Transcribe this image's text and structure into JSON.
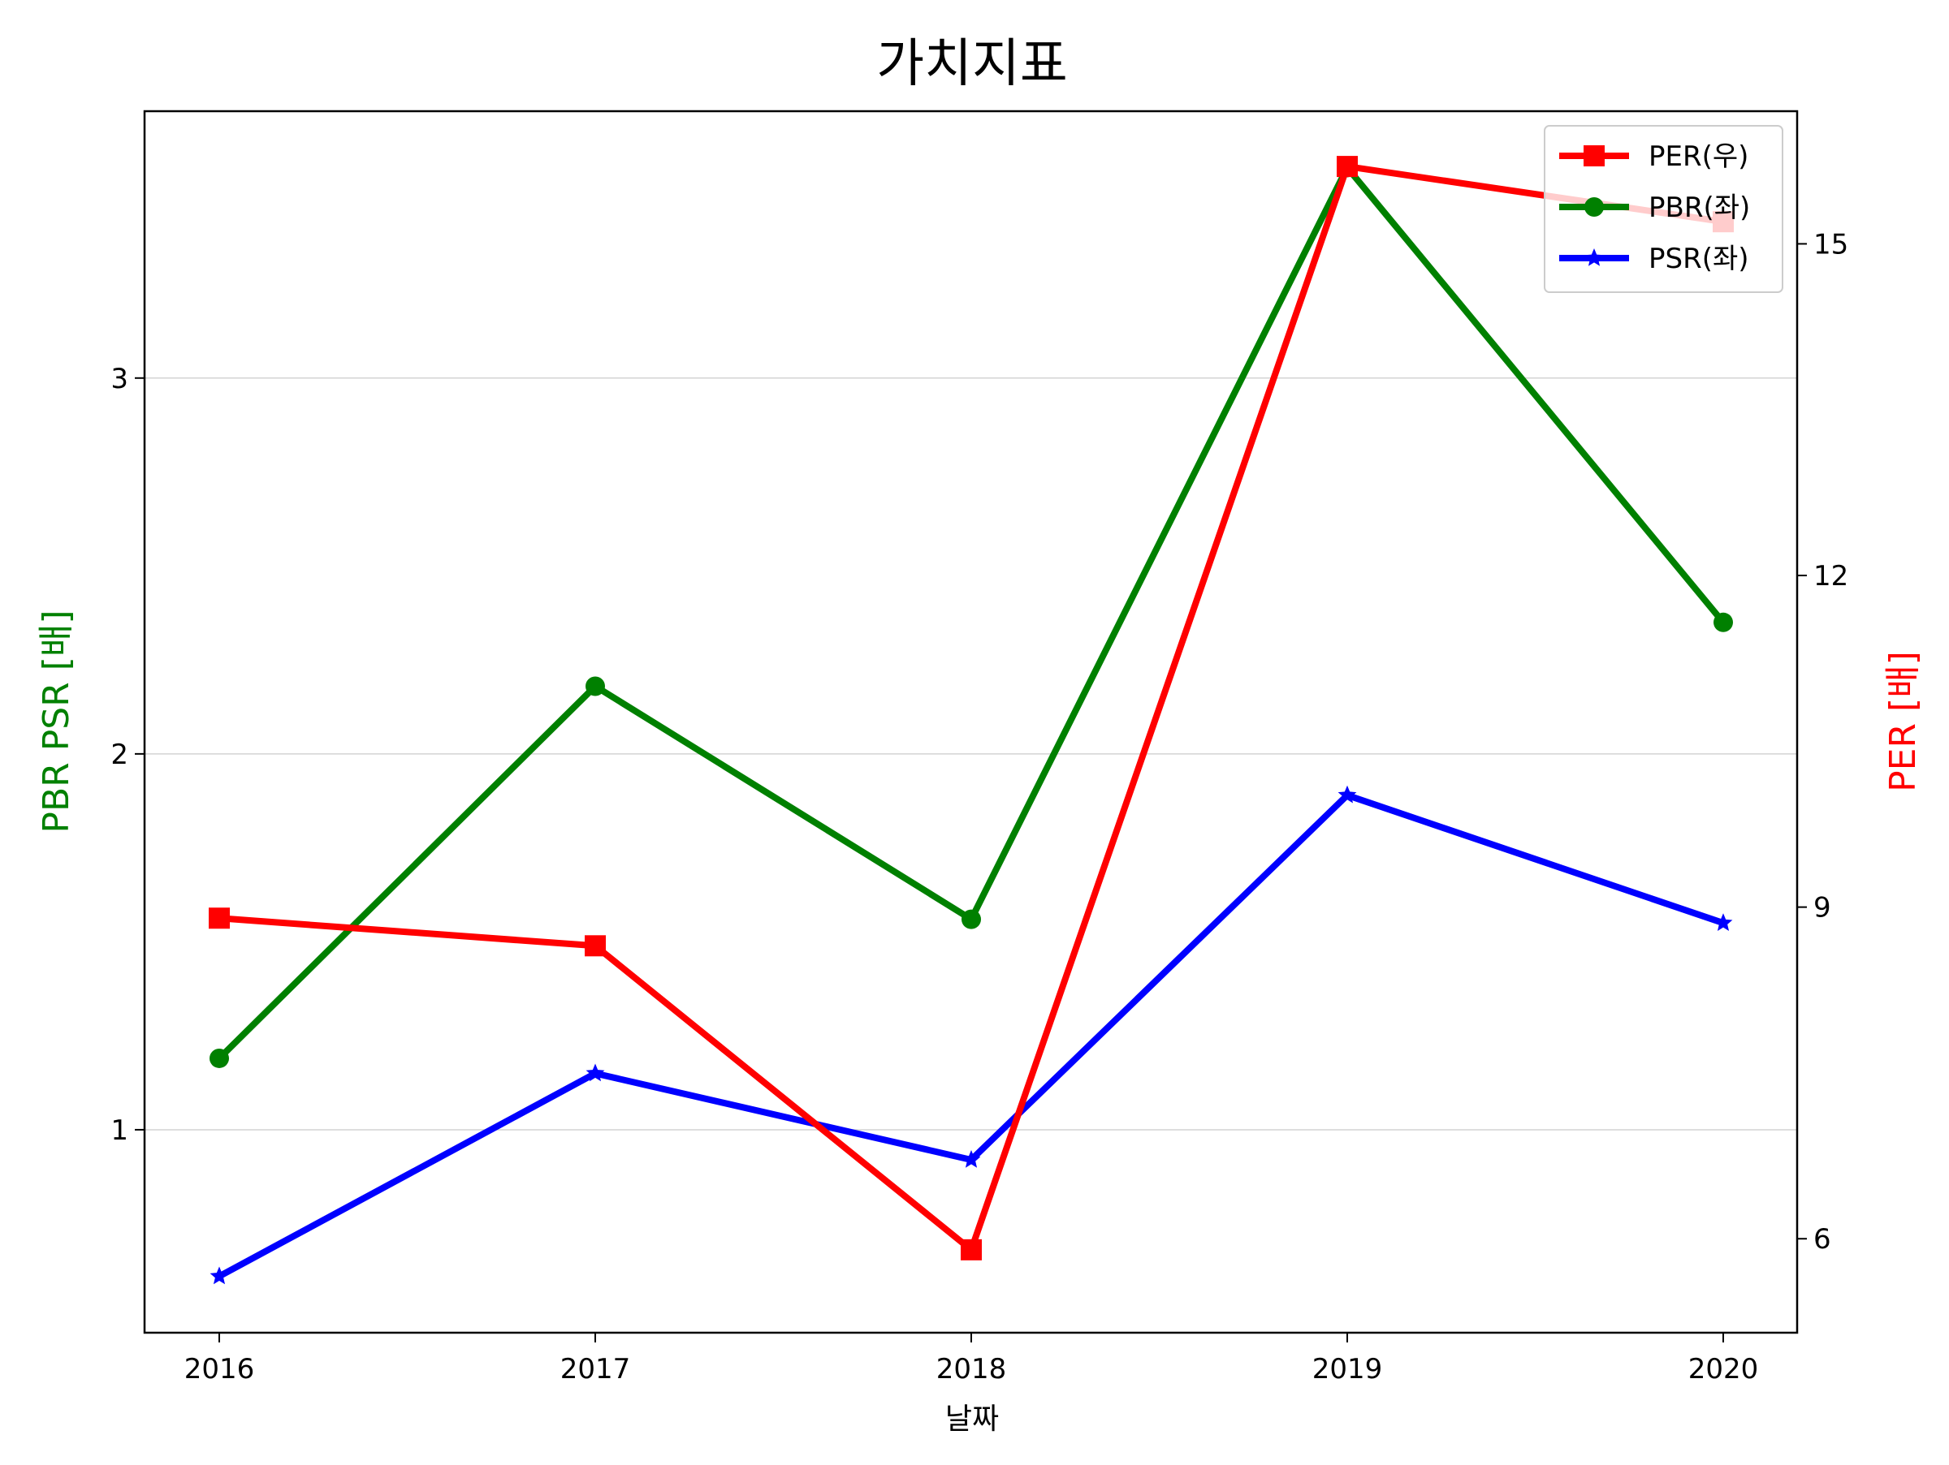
{
  "chart_data": {
    "type": "line",
    "title": "가치지표",
    "xlabel": "날짜",
    "ylabel_left": "PBR PSR [배]",
    "ylabel_right": "PER [배]",
    "categories": [
      "2016",
      "2017",
      "2018",
      "2019",
      "2020"
    ],
    "ylim_left": [
      0.46,
      3.71
    ],
    "yticks_left": [
      1,
      2,
      3
    ],
    "ylim_right": [
      5.15,
      16.2
    ],
    "yticks_right": [
      6,
      9,
      12,
      15
    ],
    "grid": "horizontal (left axis)",
    "legend_position": "top-right",
    "series": [
      {
        "name": "PER(우)",
        "axis": "right",
        "color": "#ff0000",
        "marker": "square",
        "values": [
          8.9,
          8.65,
          5.9,
          15.7,
          15.2
        ]
      },
      {
        "name": "PBR(좌)",
        "axis": "left",
        "color": "#008000",
        "marker": "circle",
        "values": [
          1.19,
          2.18,
          1.56,
          3.56,
          2.35
        ]
      },
      {
        "name": "PSR(좌)",
        "axis": "left",
        "color": "#0000ff",
        "marker": "star",
        "values": [
          0.61,
          1.15,
          0.92,
          1.89,
          1.55
        ]
      }
    ]
  }
}
